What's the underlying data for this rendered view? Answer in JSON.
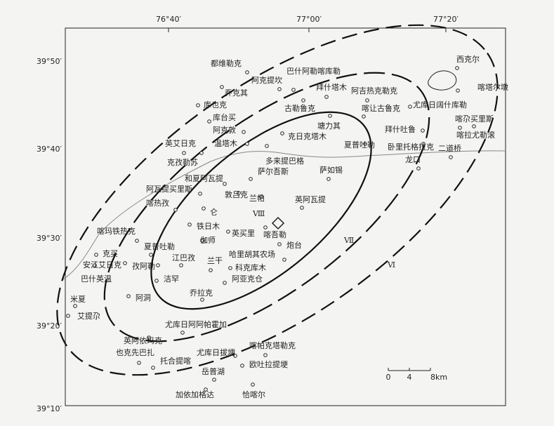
{
  "top_labels": [
    "76°40′",
    "77°00′",
    "77°20′"
  ],
  "left_labels": [
    "39°50′",
    "39°40′",
    "39°30′",
    "39°20′",
    "39°10′"
  ],
  "places": [
    "都维勒克",
    "阿克提坎",
    "巴什阿勒喀库勒",
    "乔克其",
    "拜什塔木",
    "阿吉热克勒克",
    "库也克",
    "古勒鲁克",
    "喀让古鲁克",
    "尤库日阔什库勒",
    "西克尔",
    "喀塔尔墩",
    "库台买",
    "阿克敦",
    "塘力其",
    "喀尕买里斯",
    "拜什吐鲁",
    "喀拉尤勒滚",
    "温塔木",
    "克日克塔木",
    "英艾日克",
    "夏普吐勒",
    "卧里托格拉克",
    "二道桥",
    "克孜勒苏",
    "多来提巴格",
    "萨如锡",
    "萨尔吾斯",
    "龙口",
    "和夏阿瓦提",
    "阿瓦提买里斯",
    "敦吕克",
    "兰帕",
    "英阿瓦提",
    "喀热孜",
    "仑",
    "铁日木",
    "喀玛铁热克",
    "英买里",
    "喀吾勒",
    "伽师",
    "夏普吐勒",
    "炮台",
    "克买",
    "哈里胡其农场",
    "安江艾日克",
    "江巴孜",
    "兰干",
    "孜阿勒",
    "科克库木",
    "巴什英温",
    "洁罕",
    "阿亚克仓",
    "阿洞",
    "乔拉克",
    "米夏",
    "艾提尕",
    "尤库日阿阿帕霍加",
    "英阿依玛克",
    "喀帕克塔勒克",
    "也克先巴扎",
    "尤库日拔埂",
    "托合提喀",
    "欧吐拉提埂",
    "岳普湖",
    "加依加格达",
    "恰喀尔"
  ],
  "zones": [
    "Ⅷ",
    "Ⅶ",
    "Ⅵ"
  ],
  "scale": [
    "0",
    "4",
    "8km"
  ]
}
